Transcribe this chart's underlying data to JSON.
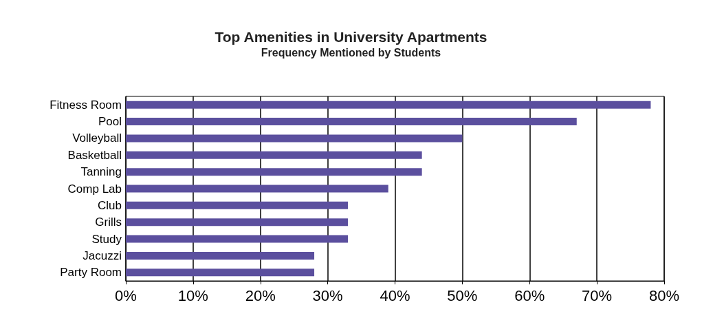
{
  "chart_data": {
    "type": "bar",
    "orientation": "horizontal",
    "title": "Top Amenities in University Apartments",
    "subtitle": "Frequency Mentioned by Students",
    "categories": [
      "Fitness Room",
      "Pool",
      "Volleyball",
      "Basketball",
      "Tanning",
      "Comp Lab",
      "Club",
      "Grills",
      "Study",
      "Jacuzzi",
      "Party Room"
    ],
    "values": [
      78,
      67,
      50,
      44,
      44,
      39,
      33,
      33,
      33,
      28,
      28
    ],
    "color": "#5b4f9e",
    "xlim": [
      0,
      80
    ],
    "xticks": [
      {
        "value": 0,
        "label": "0%"
      },
      {
        "value": 10,
        "label": "10%"
      },
      {
        "value": 20,
        "label": "20%"
      },
      {
        "value": 30,
        "label": "30%"
      },
      {
        "value": 40,
        "label": "40%"
      },
      {
        "value": 50,
        "label": "50%"
      },
      {
        "value": 60,
        "label": "60%"
      },
      {
        "value": 70,
        "label": "70%"
      },
      {
        "value": 80,
        "label": "80%"
      }
    ],
    "grid": "x"
  }
}
